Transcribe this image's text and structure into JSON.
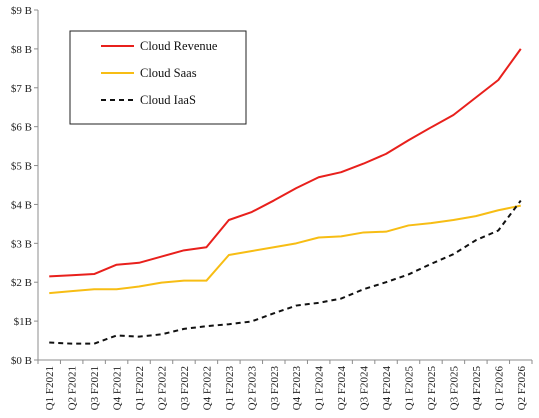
{
  "chart_data": {
    "type": "line",
    "title": "",
    "xlabel": "",
    "ylabel": "",
    "categories": [
      "Q1 F2021",
      "Q2 F2021",
      "Q3 F2021",
      "Q4 F2021",
      "Q1 F2022",
      "Q2 F2022",
      "Q3 F2022",
      "Q4 F2022",
      "Q1 F2023",
      "Q2 F2023",
      "Q3 F2023",
      "Q4 F2023",
      "Q1 F2024",
      "Q2 F2024",
      "Q3 F2024",
      "Q4 F2024",
      "Q1 F2025",
      "Q2 F2025",
      "Q3 F2025",
      "Q4 F2025",
      "Q1 F2026",
      "Q2 F2026"
    ],
    "y_ticks": [
      "$0 B",
      "$1B",
      "$2 B",
      "$3 B",
      "$4 B",
      "$5 B",
      "$6 B",
      "$7 B",
      "$8 B",
      "$9 B"
    ],
    "ylim": [
      0,
      9
    ],
    "grid": false,
    "legend_position": "top-left",
    "series": [
      {
        "name": "Cloud Revenue",
        "color": "#e8201c",
        "style": "solid",
        "values": [
          2.15,
          2.18,
          2.21,
          2.45,
          2.5,
          2.66,
          2.82,
          2.9,
          3.6,
          3.8,
          4.1,
          4.42,
          4.7,
          4.83,
          5.05,
          5.3,
          5.65,
          5.98,
          6.3,
          6.75,
          7.2,
          8.0
        ]
      },
      {
        "name": "Cloud Saas",
        "color": "#f7bd14",
        "style": "solid",
        "values": [
          1.72,
          1.77,
          1.82,
          1.82,
          1.89,
          1.99,
          2.04,
          2.04,
          2.7,
          2.8,
          2.9,
          3.0,
          3.15,
          3.18,
          3.28,
          3.3,
          3.46,
          3.52,
          3.6,
          3.7,
          3.85,
          3.97
        ]
      },
      {
        "name": "Cloud IaaS",
        "color": "#111111",
        "style": "dashed",
        "values": [
          0.45,
          0.42,
          0.42,
          0.63,
          0.6,
          0.66,
          0.8,
          0.87,
          0.92,
          0.99,
          1.2,
          1.4,
          1.47,
          1.58,
          1.82,
          2.0,
          2.2,
          2.47,
          2.72,
          3.08,
          3.33,
          4.1
        ]
      }
    ]
  }
}
